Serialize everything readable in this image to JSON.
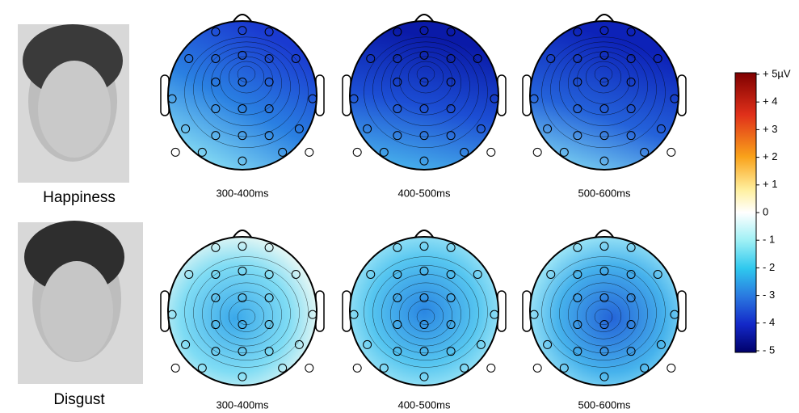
{
  "rows": [
    {
      "label": "Happiness",
      "maps": [
        "300-400ms",
        "400-500ms",
        "500-600ms"
      ]
    },
    {
      "label": "Disgust",
      "maps": [
        "300-400ms",
        "400-500ms",
        "500-600ms"
      ]
    }
  ],
  "colorbar": {
    "ticks": [
      "+ 5µV",
      "+ 4",
      "+ 3",
      "+ 2",
      "+ 1",
      "0",
      "- 1",
      "- 2",
      "- 3",
      "- 4",
      "- 5"
    ]
  }
}
